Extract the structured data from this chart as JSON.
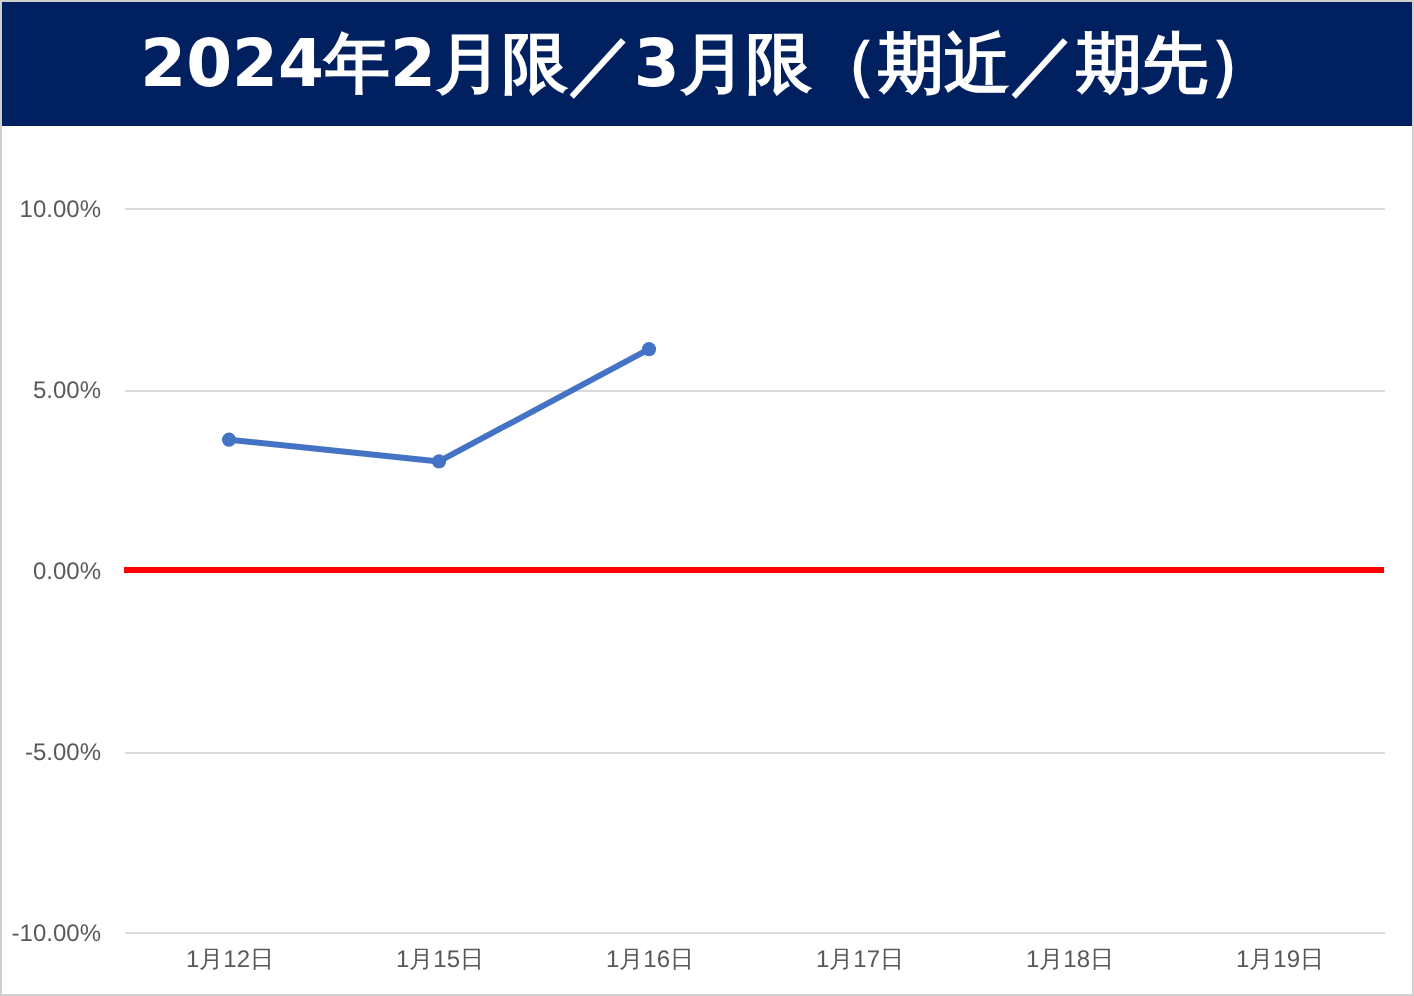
{
  "chart_data": {
    "type": "line",
    "title": "2024年2月限／3月限（期近／期先）",
    "categories": [
      "1月12日",
      "1月15日",
      "1月16日",
      "1月17日",
      "1月18日",
      "1月19日"
    ],
    "series": [
      {
        "color": "#4472c4",
        "values": [
          3.6,
          3.0,
          6.1,
          null,
          null,
          null
        ]
      }
    ],
    "ylim": [
      -10,
      10
    ],
    "yticks": [
      {
        "value": -10,
        "label": "-10.00%"
      },
      {
        "value": -5,
        "label": "-5.00%"
      },
      {
        "value": 0,
        "label": "0.00%"
      },
      {
        "value": 5,
        "label": "5.00%"
      },
      {
        "value": 10,
        "label": "10.00%"
      }
    ],
    "ref_lines": [
      {
        "axis": "y",
        "value": 0,
        "color": "#ff0000"
      }
    ],
    "grid": "y",
    "marker": "circle",
    "line_style": "solid"
  }
}
